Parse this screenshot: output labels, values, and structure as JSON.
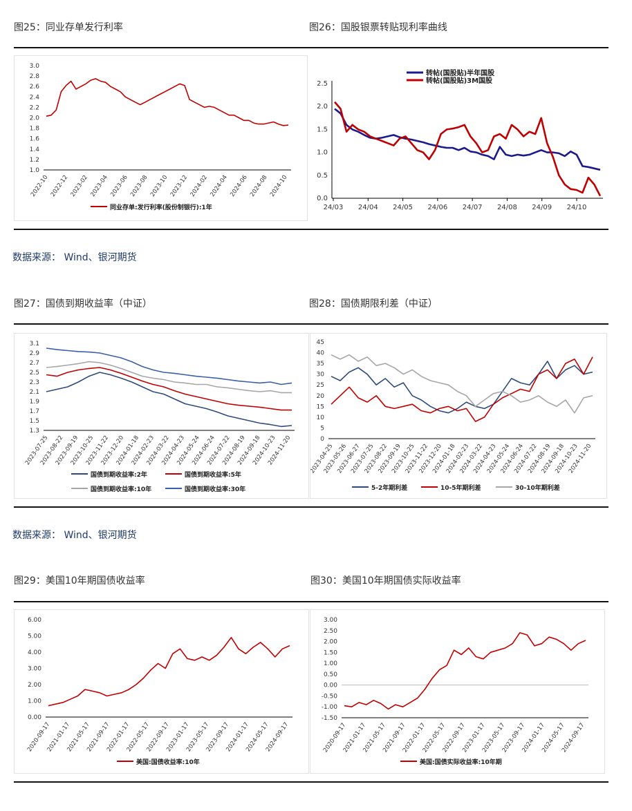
{
  "captions": {
    "c25": "图25：同业存单发行利率",
    "c26": "图26：国股银票转贴现利率曲线",
    "c27": "图27：国债到期收益率（中证）",
    "c28": "图28：国债期限利差（中证）",
    "c29": "图29：美国10年期国债收益率",
    "c30": "图30：美国10年期国债实际收益率"
  },
  "sources": {
    "s1": "数据来源：  Wind、银河期货",
    "s2": "数据来源：  Wind、银河期货"
  },
  "colors": {
    "red": "#c00000",
    "navy": "#1a1a8c",
    "steel": "#2e4a7d",
    "gray": "#a6a6a6",
    "blue": "#3a5ea8"
  },
  "chart_data": [
    {
      "id": "fig25",
      "type": "line",
      "ylim": [
        1.0,
        3.0
      ],
      "yticks": [
        "3.0",
        "2.8",
        "2.6",
        "2.4",
        "2.2",
        "2.0",
        "1.8",
        "1.6",
        "1.4",
        "1.2",
        "1.0"
      ],
      "xticks": [
        "2022-10",
        "2022-12",
        "2023-02",
        "2023-04",
        "2023-06",
        "2023-08",
        "2023-10",
        "2023-12",
        "2024-02",
        "2024-04",
        "2024-06",
        "2024-08",
        "2024-10"
      ],
      "series": [
        {
          "name": "同业存单:发行利率(股份制银行):1年",
          "color": "#c00000",
          "values": [
            2.03,
            2.05,
            2.15,
            2.5,
            2.62,
            2.7,
            2.55,
            2.6,
            2.65,
            2.72,
            2.75,
            2.7,
            2.68,
            2.6,
            2.55,
            2.5,
            2.4,
            2.35,
            2.3,
            2.25,
            2.3,
            2.35,
            2.4,
            2.45,
            2.5,
            2.55,
            2.6,
            2.65,
            2.62,
            2.35,
            2.3,
            2.25,
            2.2,
            2.22,
            2.2,
            2.15,
            2.1,
            2.05,
            2.05,
            2.0,
            1.95,
            1.95,
            1.9,
            1.88,
            1.88,
            1.9,
            1.92,
            1.88,
            1.85,
            1.86
          ]
        }
      ]
    },
    {
      "id": "fig26",
      "type": "line",
      "ylim": [
        0.0,
        2.5
      ],
      "yticks": [
        "2.5",
        "2.0",
        "1.5",
        "1.0",
        "0.5",
        "0.0"
      ],
      "xticks": [
        "24/03",
        "24/04",
        "24/05",
        "24/06",
        "24/07",
        "24/08",
        "24/09",
        "24/10"
      ],
      "series": [
        {
          "name": "转帖(国股贴)半年国股",
          "color": "#1a1a8c",
          "values": [
            1.95,
            1.85,
            1.6,
            1.5,
            1.45,
            1.38,
            1.32,
            1.3,
            1.32,
            1.35,
            1.38,
            1.33,
            1.3,
            1.28,
            1.25,
            1.22,
            1.18,
            1.15,
            1.12,
            1.1,
            1.1,
            1.05,
            1.1,
            1.02,
            1.0,
            0.95,
            0.92,
            0.85,
            1.12,
            0.95,
            0.92,
            0.95,
            0.93,
            0.95,
            1.0,
            1.05,
            1.0,
            1.0,
            0.98,
            0.92,
            1.02,
            0.95,
            0.7,
            0.68,
            0.65,
            0.62
          ]
        },
        {
          "name": "转帖(国股贴)3M国股",
          "color": "#c00000",
          "values": [
            2.1,
            1.95,
            1.45,
            1.6,
            1.5,
            1.45,
            1.35,
            1.3,
            1.25,
            1.2,
            1.15,
            1.3,
            1.35,
            1.2,
            1.05,
            1.0,
            0.85,
            1.05,
            1.4,
            1.5,
            1.52,
            1.55,
            1.6,
            1.35,
            1.2,
            1.0,
            1.05,
            1.35,
            1.4,
            1.3,
            1.6,
            1.5,
            1.35,
            1.45,
            1.4,
            1.75,
            1.2,
            0.9,
            0.5,
            0.3,
            0.2,
            0.18,
            0.12,
            0.45,
            0.3,
            0.05
          ]
        }
      ]
    },
    {
      "id": "fig27",
      "type": "line",
      "ylim": [
        1.3,
        3.1
      ],
      "yticks": [
        "3.1",
        "2.9",
        "2.7",
        "2.5",
        "2.3",
        "2.1",
        "1.9",
        "1.7",
        "1.5",
        "1.3"
      ],
      "xticks": [
        "2023-07-25",
        "2023-08-22",
        "2023-09-19",
        "2023-10-25",
        "2023-11-22",
        "2023-12-20",
        "2024-01-18",
        "2024-02-23",
        "2024-03-22",
        "2024-04-23",
        "2024-05-24",
        "2024-06-24",
        "2024-07-22",
        "2024-08-19",
        "2024-09-18",
        "2024-10-23",
        "2024-11-20"
      ],
      "series": [
        {
          "name": "国债到期收益率:2年",
          "color": "#2e4a7d",
          "values": [
            2.1,
            2.15,
            2.2,
            2.3,
            2.42,
            2.5,
            2.45,
            2.38,
            2.3,
            2.2,
            2.1,
            2.05,
            1.95,
            1.85,
            1.8,
            1.75,
            1.68,
            1.6,
            1.55,
            1.5,
            1.45,
            1.42,
            1.38,
            1.4
          ]
        },
        {
          "name": "国债到期收益率:5年",
          "color": "#c00000",
          "values": [
            2.45,
            2.42,
            2.5,
            2.55,
            2.58,
            2.6,
            2.55,
            2.48,
            2.4,
            2.32,
            2.25,
            2.2,
            2.12,
            2.05,
            2.0,
            1.95,
            1.9,
            1.85,
            1.82,
            1.8,
            1.78,
            1.75,
            1.72,
            1.72
          ]
        },
        {
          "name": "国债到期收益率:10年",
          "color": "#a6a6a6",
          "values": [
            2.6,
            2.62,
            2.65,
            2.68,
            2.72,
            2.7,
            2.65,
            2.58,
            2.5,
            2.42,
            2.38,
            2.35,
            2.3,
            2.28,
            2.25,
            2.25,
            2.2,
            2.18,
            2.15,
            2.12,
            2.1,
            2.12,
            2.08,
            2.08
          ]
        },
        {
          "name": "国债到期收益率:30年",
          "color": "#3a5ea8",
          "values": [
            3.0,
            2.97,
            2.95,
            2.93,
            2.92,
            2.9,
            2.85,
            2.8,
            2.72,
            2.62,
            2.55,
            2.5,
            2.48,
            2.45,
            2.42,
            2.4,
            2.38,
            2.35,
            2.32,
            2.3,
            2.28,
            2.3,
            2.25,
            2.28
          ]
        }
      ]
    },
    {
      "id": "fig28",
      "type": "line",
      "ylim": [
        0,
        45
      ],
      "yticks": [
        "45",
        "40",
        "35",
        "30",
        "25",
        "20",
        "15",
        "10",
        "5",
        "0"
      ],
      "xticks": [
        "2023-04-25",
        "2023-05-26",
        "2023-06-27",
        "2023-07-25",
        "2023-08-22",
        "2023-09-19",
        "2023-10-25",
        "2023-11-22",
        "2023-12-20",
        "2024-01-18",
        "2024-02-23",
        "2024-03-22",
        "2024-04-23",
        "2024-05-24",
        "2024-06-24",
        "2024-07-22",
        "2024-08-19",
        "2024-09-18",
        "2024-10-23",
        "2024-11-20"
      ],
      "series": [
        {
          "name": "5-2年期利差",
          "color": "#2e4a7d",
          "values": [
            29,
            27,
            31,
            33,
            30,
            25,
            28,
            24,
            26,
            20,
            18,
            15,
            13,
            12,
            14,
            17,
            15,
            14,
            16,
            22,
            28,
            26,
            25,
            30,
            36,
            28,
            32,
            34,
            30,
            31
          ]
        },
        {
          "name": "10-5年期利差",
          "color": "#c00000",
          "values": [
            16,
            20,
            24,
            19,
            17,
            20,
            15,
            14,
            15,
            16,
            13,
            12,
            14,
            15,
            13,
            14,
            8,
            10,
            16,
            19,
            21,
            23,
            22,
            30,
            32,
            28,
            35,
            37,
            30,
            38
          ]
        },
        {
          "name": "30-10年期利差",
          "color": "#a6a6a6",
          "values": [
            39,
            37,
            39,
            36,
            38,
            34,
            35,
            33,
            30,
            32,
            29,
            27,
            26,
            25,
            22,
            20,
            15,
            18,
            21,
            22,
            20,
            17,
            18,
            20,
            17,
            15,
            18,
            12,
            19,
            20
          ]
        }
      ]
    },
    {
      "id": "fig29",
      "type": "line",
      "ylim": [
        0.0,
        6.0
      ],
      "yticks": [
        "6.00",
        "5.00",
        "4.00",
        "3.00",
        "2.00",
        "1.00",
        "0.00"
      ],
      "xticks": [
        "2020-09-17",
        "2021-01-17",
        "2021-05-17",
        "2021-09-17",
        "2022-01-17",
        "2022-05-17",
        "2022-09-17",
        "2023-01-17",
        "2023-05-17",
        "2023-09-17",
        "2024-01-17",
        "2024-05-17",
        "2024-09-17"
      ],
      "series": [
        {
          "name": "美国:国债收益率:10年",
          "color": "#c00000",
          "values": [
            0.7,
            0.8,
            0.9,
            1.1,
            1.3,
            1.7,
            1.6,
            1.5,
            1.3,
            1.4,
            1.5,
            1.7,
            2.0,
            2.4,
            2.9,
            3.3,
            3.0,
            3.9,
            4.2,
            3.6,
            3.5,
            3.7,
            3.5,
            3.8,
            4.3,
            4.9,
            4.2,
            3.9,
            4.3,
            4.6,
            4.2,
            3.7,
            4.2,
            4.4
          ]
        }
      ]
    },
    {
      "id": "fig30",
      "type": "line",
      "ylim": [
        -1.5,
        3.0
      ],
      "yticks": [
        "3.00",
        "2.50",
        "2.00",
        "1.50",
        "1.00",
        "0.50",
        "0.00",
        "-0.50",
        "-1.00",
        "-1.50"
      ],
      "xticks": [
        "2020-09-17",
        "2021-01-17",
        "2021-05-17",
        "2021-09-17",
        "2022-01-17",
        "2022-05-17",
        "2022-09-17",
        "2023-01-17",
        "2023-05-17",
        "2023-09-17",
        "2024-01-17",
        "2024-05-17",
        "2024-09-17"
      ],
      "series": [
        {
          "name": "美国:国债实际收益率:10年期",
          "color": "#c00000",
          "values": [
            -0.95,
            -1.0,
            -0.8,
            -0.9,
            -0.7,
            -0.85,
            -1.1,
            -0.9,
            -1.0,
            -0.8,
            -0.6,
            -0.2,
            0.3,
            0.7,
            0.9,
            1.6,
            1.4,
            1.7,
            1.3,
            1.2,
            1.5,
            1.6,
            1.7,
            1.9,
            2.4,
            2.3,
            1.8,
            1.9,
            2.2,
            2.1,
            1.9,
            1.6,
            1.9,
            2.05
          ]
        }
      ]
    }
  ]
}
